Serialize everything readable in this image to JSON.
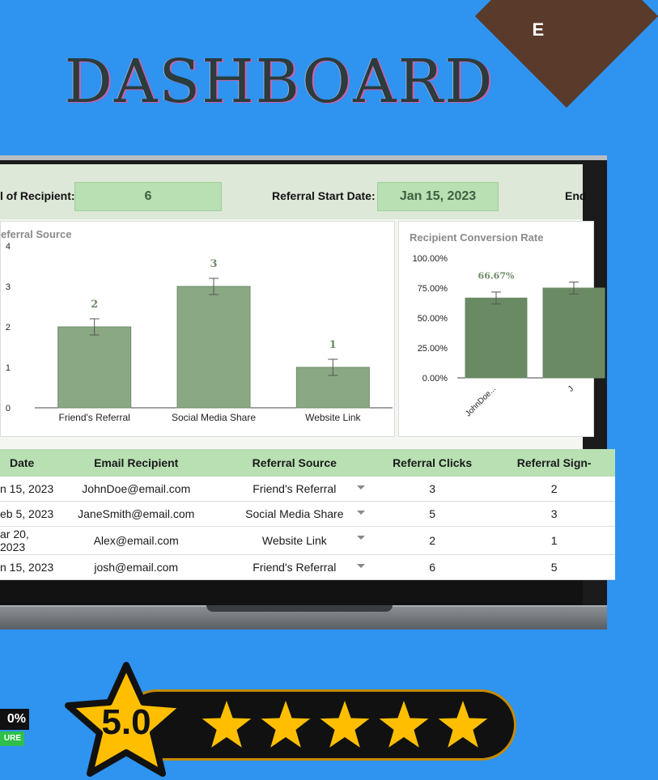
{
  "page": {
    "title": "DASHBOARD",
    "corner_glyph": "E"
  },
  "header": {
    "recipient_label": "l of Recipient:",
    "recipient_value": "6",
    "start_label": "Referral Start Date:",
    "start_value": "Jan 15, 2023",
    "end_label": "End"
  },
  "chart_data": [
    {
      "type": "bar",
      "title": "eferral Source",
      "categories": [
        "Friend's Referral",
        "Social Media Share",
        "Website Link"
      ],
      "values": [
        2,
        3,
        1
      ],
      "data_labels": [
        "2",
        "3",
        "1"
      ],
      "ylim": [
        0,
        4
      ],
      "yticks": [
        "0",
        "1",
        "2",
        "3",
        "4"
      ],
      "error_bars": true,
      "color": "#8ba884"
    },
    {
      "type": "bar",
      "title": "Recipient Conversion Rate",
      "categories": [
        "JohnDoe...",
        "J"
      ],
      "values": [
        66.67,
        75
      ],
      "data_labels": [
        "66.67%"
      ],
      "ylim": [
        0,
        100
      ],
      "yticks": [
        "0.00%",
        "25.00%",
        "50.00%",
        "75.00%",
        "100.00%"
      ],
      "error_bars": true,
      "color": "#6a8a64"
    }
  ],
  "table": {
    "columns": [
      "Date",
      "Email Recipient",
      "Referral Source",
      "Referral Clicks",
      "Referral Sign-"
    ],
    "rows": [
      [
        "n 15, 2023",
        "JohnDoe@email.com",
        "Friend's Referral",
        "3",
        "2"
      ],
      [
        "eb 5, 2023",
        "JaneSmith@email.com",
        "Social Media Share",
        "5",
        "3"
      ],
      [
        "ar 20, 2023",
        "Alex@email.com",
        "Website Link",
        "2",
        "1"
      ],
      [
        "n 15, 2023",
        "josh@email.com",
        "Friend's Referral",
        "6",
        "5"
      ]
    ]
  },
  "rating": {
    "score": "5.0",
    "stars": 5,
    "star_color": "#ffbf00"
  },
  "badge": {
    "percent": "0%",
    "label": "URE"
  }
}
